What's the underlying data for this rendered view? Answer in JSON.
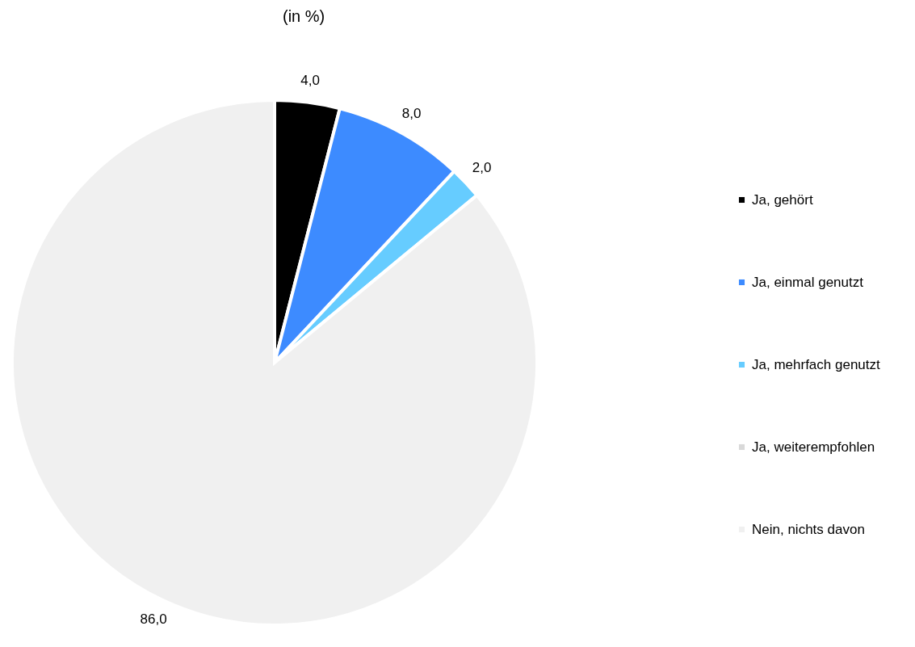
{
  "chart_data": {
    "type": "pie",
    "title": "(in %)",
    "categories": [
      "Ja, gehört",
      "Ja, einmal genutzt",
      "Ja, mehrfach genutzt",
      "Ja, weiterempfohlen",
      "Nein, nichts davon"
    ],
    "values": [
      4.0,
      8.0,
      2.0,
      0.0,
      86.0
    ],
    "colors": [
      "#000000",
      "#3d8bff",
      "#66ccff",
      "#d9d9d9",
      "#f0f0f0"
    ],
    "value_labels": [
      "4,0",
      "8,0",
      "2,0",
      null,
      "86,0"
    ],
    "legend": "right"
  }
}
